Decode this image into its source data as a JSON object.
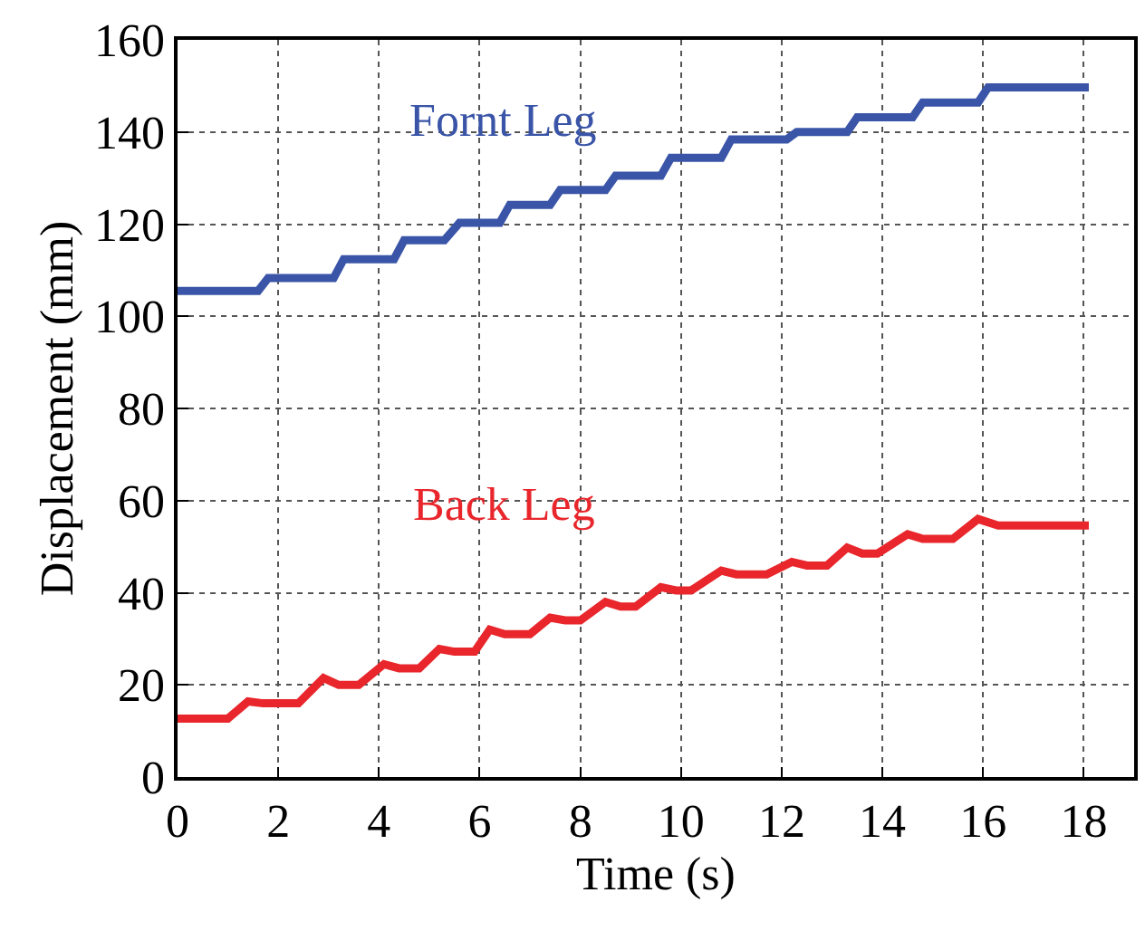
{
  "chart_data": {
    "type": "line",
    "xlabel": "Time (s)",
    "ylabel": "Displacement (mm)",
    "xlim": [
      0,
      19
    ],
    "ylim": [
      0,
      160
    ],
    "xticks": [
      0,
      2,
      4,
      6,
      8,
      10,
      12,
      14,
      16,
      18
    ],
    "yticks": [
      0,
      20,
      40,
      60,
      80,
      100,
      120,
      140,
      160
    ],
    "grid": true,
    "legend": false,
    "line_style": "solid",
    "series": [
      {
        "name": "Fornt Leg",
        "color": "#3a55a8",
        "x": [
          0,
          1.6,
          1.8,
          3.1,
          3.3,
          4.3,
          4.5,
          5.3,
          5.6,
          6.4,
          6.6,
          7.4,
          7.6,
          8.5,
          8.7,
          9.6,
          9.8,
          10.8,
          11.0,
          12.1,
          12.3,
          13.3,
          13.5,
          14.6,
          14.8,
          15.9,
          16.1,
          18.1
        ],
        "values": [
          105.5,
          105.5,
          108.3,
          108.3,
          112.4,
          112.4,
          116.5,
          116.5,
          120.3,
          120.3,
          124.2,
          124.2,
          127.4,
          127.4,
          130.5,
          130.5,
          134.4,
          134.4,
          138.4,
          138.4,
          140,
          140,
          143.2,
          143.2,
          146.4,
          146.4,
          149.7,
          149.7
        ]
      },
      {
        "name": "Back Leg",
        "color": "#e8262b",
        "x": [
          0,
          1.0,
          1.4,
          1.7,
          2.4,
          2.9,
          3.2,
          3.6,
          4.1,
          4.4,
          4.8,
          5.2,
          5.5,
          5.9,
          6.2,
          6.5,
          7.0,
          7.4,
          7.7,
          8.0,
          8.5,
          8.8,
          9.1,
          9.6,
          9.9,
          10.2,
          10.8,
          11.1,
          11.7,
          12.2,
          12.5,
          12.9,
          13.3,
          13.6,
          13.9,
          14.5,
          14.8,
          15.4,
          15.9,
          16.3,
          18.1
        ],
        "values": [
          12.7,
          12.7,
          16.4,
          16,
          16,
          21.5,
          20,
          20,
          24.5,
          23.6,
          23.6,
          27.8,
          27.2,
          27.2,
          32,
          31,
          31,
          34.6,
          34,
          34,
          38,
          37,
          37,
          41.2,
          40.5,
          40.5,
          44.8,
          44,
          44,
          46.7,
          45.9,
          45.9,
          49.8,
          48.5,
          48.5,
          52.7,
          51.7,
          51.7,
          56,
          54.6,
          54.6
        ]
      }
    ]
  }
}
